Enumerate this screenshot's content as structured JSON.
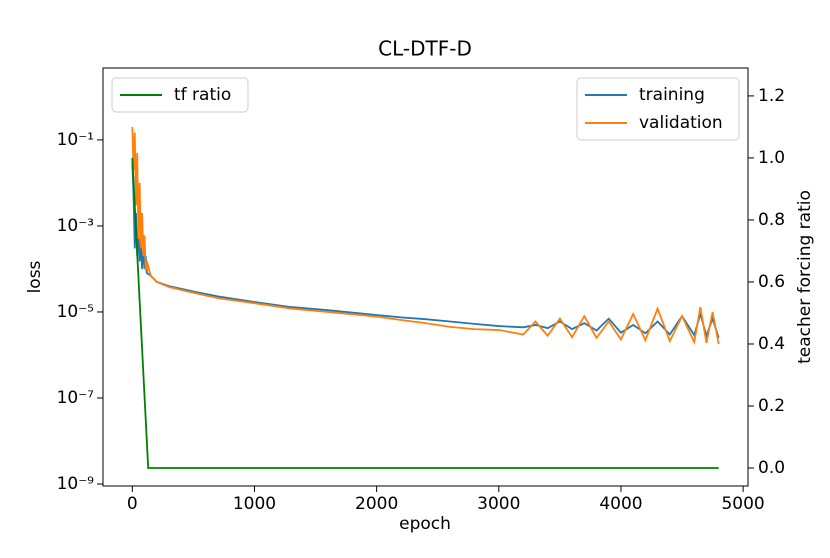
{
  "chart_data": {
    "type": "line",
    "title": "CL-DTF-D",
    "xlabel": "epoch",
    "ylabel": "loss",
    "y2label": "teacher forcing ratio",
    "x": [
      0,
      10,
      20,
      30,
      40,
      50,
      60,
      70,
      80,
      90,
      100,
      110,
      120,
      150,
      200,
      300,
      500,
      700,
      1000,
      1300,
      1600,
      2000,
      2200,
      2400,
      2600,
      2800,
      3000,
      3200,
      3300,
      3400,
      3500,
      3600,
      3700,
      3800,
      3900,
      4000,
      4100,
      4200,
      4300,
      4400,
      4500,
      4600,
      4650,
      4700,
      4750,
      4800
    ],
    "series": [
      {
        "name": "training",
        "color": "#1f77b4",
        "values": [
          0.03,
          0.005,
          0.0003,
          0.002,
          0.0002,
          0.0008,
          0.00015,
          0.0004,
          0.0001,
          0.0003,
          0.0001,
          0.0002,
          8e-05,
          7e-05,
          5e-05,
          4e-05,
          3e-05,
          2.3e-05,
          1.7e-05,
          1.3e-05,
          1.1e-05,
          8.5e-06,
          7.5e-06,
          6.8e-06,
          6e-06,
          5.3e-06,
          4.7e-06,
          4.4e-06,
          5e-06,
          4.2e-06,
          6e-06,
          4e-06,
          5.5e-06,
          3.7e-06,
          7e-06,
          3.3e-06,
          5e-06,
          3.2e-06,
          6e-06,
          3e-06,
          8e-06,
          2.9e-06,
          9e-06,
          2.8e-06,
          7e-06,
          2.5e-06
        ]
      },
      {
        "name": "validation",
        "color": "#ff7f0e",
        "values": [
          0.2,
          0.02,
          0.15,
          0.003,
          0.05,
          0.0005,
          0.01,
          0.0003,
          0.002,
          0.0002,
          0.0006,
          9e-05,
          0.00015,
          7e-05,
          5e-05,
          3.8e-05,
          2.8e-05,
          2.1e-05,
          1.6e-05,
          1.2e-05,
          1e-05,
          7.8e-06,
          6.5e-06,
          5.5e-06,
          4.5e-06,
          4e-06,
          3.8e-06,
          3e-06,
          6e-06,
          2.8e-06,
          7e-06,
          2.6e-06,
          8e-06,
          2.5e-06,
          6e-06,
          2.3e-06,
          9e-06,
          2.2e-06,
          1.2e-05,
          2.1e-06,
          8e-06,
          2e-06,
          1.3e-05,
          1.9e-06,
          1e-05,
          1.8e-06
        ]
      },
      {
        "name": "tf ratio",
        "color": "#008000",
        "axis": "y2",
        "x": [
          0,
          130,
          4800
        ],
        "values": [
          1.0,
          0.0,
          0.0
        ]
      }
    ],
    "xlim": [
      -240,
      5040
    ],
    "xticks": [
      0,
      1000,
      2000,
      3000,
      4000,
      5000
    ],
    "ylim": [
      9e-10,
      4.7
    ],
    "log_y": true,
    "yticks": [
      {
        "value": 1e-09,
        "label": "10⁻⁹"
      },
      {
        "value": 1e-07,
        "label": "10⁻⁷"
      },
      {
        "value": 1e-05,
        "label": "10⁻⁵"
      },
      {
        "value": 0.001,
        "label": "10⁻³"
      },
      {
        "value": 0.1,
        "label": "10⁻¹"
      }
    ],
    "y2lim": [
      -0.058,
      1.29
    ],
    "y2ticks": [
      {
        "value": 0,
        "label": "0.0"
      },
      0.2,
      0.4,
      0.6,
      0.8,
      {
        "value": 1,
        "label": "1.0"
      },
      1.2
    ],
    "legend": "upper right",
    "legend2": "upper left",
    "grid": false
  }
}
